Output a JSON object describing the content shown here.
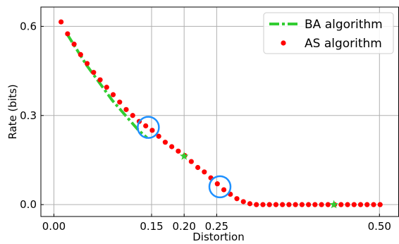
{
  "chart_data": {
    "type": "scatter",
    "xlabel": "Distortion",
    "ylabel": "Rate (bits)",
    "xlim": [
      -0.02,
      0.53
    ],
    "ylim": [
      -0.04,
      0.665
    ],
    "xticks": [
      0.0,
      0.15,
      0.2,
      0.25,
      0.5
    ],
    "xtick_labels": [
      "0.00",
      "0.15",
      "0.20",
      "0.25",
      "0.50"
    ],
    "yticks": [
      0.0,
      0.3,
      0.6
    ],
    "ytick_labels": [
      "0.0",
      "0.3",
      "0.6"
    ],
    "grid": true,
    "legend_position": "top-right",
    "series": [
      {
        "name": "BA algorithm",
        "style": "dash-dot line",
        "color": "#32cd32",
        "x": [
          0.02,
          0.03,
          0.04,
          0.05,
          0.06,
          0.07,
          0.08,
          0.09,
          0.1,
          0.11,
          0.12,
          0.13,
          0.143
        ],
        "y": [
          0.575,
          0.54,
          0.505,
          0.47,
          0.44,
          0.41,
          0.38,
          0.35,
          0.325,
          0.3,
          0.275,
          0.25,
          0.225
        ]
      },
      {
        "name": "AS algorithm",
        "style": "markers",
        "color": "#ff0000",
        "x": [
          0.011,
          0.021,
          0.031,
          0.041,
          0.051,
          0.061,
          0.071,
          0.081,
          0.091,
          0.101,
          0.111,
          0.121,
          0.131,
          0.141,
          0.151,
          0.161,
          0.171,
          0.181,
          0.191,
          0.201,
          0.211,
          0.221,
          0.231,
          0.241,
          0.251,
          0.261,
          0.271,
          0.281,
          0.291,
          0.301,
          0.311,
          0.321,
          0.331,
          0.341,
          0.351,
          0.361,
          0.371,
          0.381,
          0.391,
          0.401,
          0.411,
          0.421,
          0.431,
          0.441,
          0.451,
          0.461,
          0.471,
          0.481,
          0.491,
          0.501
        ],
        "y": [
          0.615,
          0.575,
          0.54,
          0.505,
          0.475,
          0.445,
          0.42,
          0.395,
          0.37,
          0.345,
          0.32,
          0.3,
          0.28,
          0.265,
          0.25,
          0.23,
          0.21,
          0.195,
          0.18,
          0.165,
          0.145,
          0.125,
          0.11,
          0.09,
          0.07,
          0.05,
          0.035,
          0.02,
          0.01,
          0.003,
          0.0,
          0.0,
          0.0,
          0.0,
          0.0,
          0.0,
          0.0,
          0.0,
          0.0,
          0.0,
          0.0,
          0.0,
          0.0,
          0.0,
          0.0,
          0.0,
          0.0,
          0.0,
          0.0,
          0.0
        ]
      },
      {
        "name": "",
        "style": "star markers",
        "color": "#32cd32",
        "x": [
          0.2,
          0.43
        ],
        "y": [
          0.163,
          0.0
        ]
      }
    ],
    "annotations": [
      {
        "type": "circle",
        "color": "#1e90ff",
        "x": 0.145,
        "y": 0.26
      },
      {
        "type": "circle",
        "color": "#1e90ff",
        "x": 0.255,
        "y": 0.06
      }
    ]
  }
}
